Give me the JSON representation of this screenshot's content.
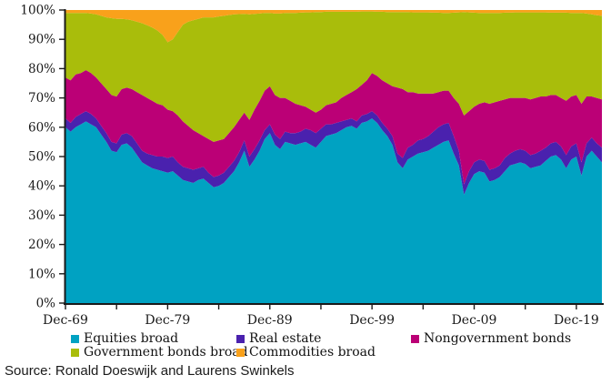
{
  "source_text": "Source: Ronald Doeswijk and Laurens Swinkels",
  "axis_color": "#1a1a1a",
  "chart_data": {
    "type": "area",
    "stacked": true,
    "title": "",
    "xlabel": "",
    "ylabel": "",
    "unit": "%",
    "ylim": [
      0,
      100
    ],
    "grid": false,
    "legend_position": "bottom",
    "y_tick_labels": [
      "0%",
      "10%",
      "20%",
      "30%",
      "40%",
      "50%",
      "60%",
      "70%",
      "80%",
      "90%",
      "100%"
    ],
    "x_tick_labels": [
      "Dec-69",
      "Dec-79",
      "Dec-89",
      "Dec-99",
      "Dec-09",
      "Dec-19"
    ],
    "x_tick_years": [
      1970,
      1980,
      1990,
      2000,
      2010,
      2020
    ],
    "minor_tick_years": [
      1970,
      1975,
      1980,
      1985,
      1990,
      1995,
      2000,
      2005,
      2010,
      2015,
      2020
    ],
    "x": [
      1970,
      1970.5,
      1971,
      1971.5,
      1972,
      1972.5,
      1973,
      1973.5,
      1974,
      1974.5,
      1975,
      1975.5,
      1976,
      1976.5,
      1977,
      1977.5,
      1978,
      1978.5,
      1979,
      1979.5,
      1980,
      1980.5,
      1981,
      1981.5,
      1982,
      1982.5,
      1983,
      1983.5,
      1984,
      1984.5,
      1985,
      1985.5,
      1986,
      1986.5,
      1987,
      1987.5,
      1988,
      1988.5,
      1989,
      1989.5,
      1990,
      1990.5,
      1991,
      1991.5,
      1992,
      1992.5,
      1993,
      1993.5,
      1994,
      1994.5,
      1995,
      1995.5,
      1996,
      1996.5,
      1997,
      1997.5,
      1998,
      1998.5,
      1999,
      1999.5,
      2000,
      2000.5,
      2001,
      2001.5,
      2002,
      2002.5,
      2003,
      2003.5,
      2004,
      2004.5,
      2005,
      2005.5,
      2006,
      2006.5,
      2007,
      2007.5,
      2008,
      2008.5,
      2009,
      2009.5,
      2010,
      2010.5,
      2011,
      2011.5,
      2012,
      2012.5,
      2013,
      2013.5,
      2014,
      2014.5,
      2015,
      2015.5,
      2016,
      2016.5,
      2017,
      2017.5,
      2018,
      2018.5,
      2019,
      2019.5,
      2020,
      2020.5,
      2021,
      2021.5,
      2022,
      2022.5
    ],
    "series": [
      {
        "name": "Equities broad",
        "color": "#00a2c2",
        "values": [
          60,
          58.5,
          60,
          61,
          62,
          61,
          60,
          57.5,
          55,
          52,
          51.5,
          54,
          54.5,
          53,
          50.5,
          48,
          47,
          46,
          45.5,
          45,
          44.5,
          45,
          43.5,
          42,
          41.5,
          41,
          42,
          42.5,
          41,
          39.5,
          40,
          41,
          43,
          45,
          48,
          52,
          46.5,
          49,
          52,
          56,
          58,
          54,
          52.5,
          55,
          54.5,
          54,
          54.5,
          55,
          54,
          53,
          55,
          57,
          57.5,
          58,
          59,
          60,
          60.5,
          59.5,
          61.5,
          62,
          63,
          61.5,
          59,
          57,
          54,
          48,
          46,
          49,
          50,
          51,
          51.5,
          52,
          53,
          54,
          55,
          55.5,
          51,
          47,
          37,
          41,
          44,
          45,
          44.5,
          41.5,
          42,
          43,
          45,
          47,
          47.5,
          48,
          47.5,
          46,
          46.5,
          47,
          48.5,
          50,
          50.5,
          49,
          46,
          49,
          50,
          43.5,
          50,
          52,
          50,
          48
        ]
      },
      {
        "name": "Real estate",
        "color": "#4a21ae",
        "values": [
          3,
          3,
          3.5,
          3.5,
          3.5,
          3.5,
          3,
          3,
          3,
          3,
          3,
          3.5,
          3.5,
          4,
          4,
          4,
          4,
          4.5,
          4.5,
          5,
          5,
          5,
          4.5,
          4.5,
          4.5,
          4.5,
          4,
          4,
          3.5,
          3.5,
          3.5,
          3.5,
          3.5,
          3.5,
          3.5,
          3.5,
          3.5,
          3.5,
          3.5,
          3,
          3,
          3.5,
          3.5,
          3.5,
          3.5,
          4,
          4,
          4.5,
          5,
          5,
          4.5,
          4,
          3.5,
          3.5,
          3,
          2.5,
          2.5,
          2.5,
          2.5,
          2.5,
          2.5,
          2.5,
          2.5,
          2.5,
          3,
          3,
          3.5,
          4,
          4,
          4.5,
          4.5,
          5,
          5.5,
          6,
          6,
          6,
          6,
          5,
          3.5,
          4,
          4,
          4,
          4,
          4,
          4,
          4,
          4.5,
          4,
          4.5,
          4.5,
          4.5,
          4.5,
          4.5,
          5,
          4.5,
          4.5,
          4.5,
          4.5,
          4.5,
          4.5,
          4.5,
          4.5,
          4.5,
          4.5,
          4.5,
          5
        ]
      },
      {
        "name": "Nongovernment bonds",
        "color": "#bb0076",
        "values": [
          14,
          14.5,
          14.5,
          14,
          14,
          14,
          14,
          14.5,
          15,
          16,
          16,
          15.5,
          15.5,
          16,
          17.5,
          19,
          19,
          18.5,
          18,
          17.5,
          16.5,
          15.5,
          16,
          15.5,
          14.5,
          13.5,
          12,
          10.5,
          11.5,
          12,
          12,
          11.5,
          11.5,
          11.5,
          11,
          9.5,
          12.5,
          13.5,
          13.5,
          13.5,
          13,
          13.5,
          14,
          11.5,
          11,
          10,
          9,
          7.5,
          7,
          7,
          6.5,
          6.5,
          7,
          7,
          8,
          8.5,
          9,
          11,
          10.5,
          11.5,
          13,
          13.5,
          14.5,
          15.5,
          17,
          22.5,
          23.5,
          19,
          18,
          16,
          15.5,
          14.5,
          13,
          12,
          11.5,
          11,
          13,
          16,
          23.5,
          20.5,
          19,
          19,
          20,
          22.5,
          22.5,
          22,
          20,
          19,
          18,
          17.5,
          18,
          19,
          19,
          18.5,
          17.5,
          16.5,
          16,
          16.5,
          18.5,
          17,
          16.5,
          20,
          16,
          14,
          15.5,
          16.5
        ]
      },
      {
        "name": "Government bonds broad",
        "color": "#a9bd0b",
        "values": [
          22,
          23,
          21,
          20.5,
          19.5,
          20.3,
          21.5,
          23,
          24.5,
          26.2,
          26.5,
          24,
          23.3,
          23.5,
          24,
          24.5,
          24.8,
          25,
          25,
          24,
          23,
          24.5,
          28.5,
          33,
          35.5,
          37.5,
          39,
          40.5,
          41.5,
          42.5,
          42.3,
          42,
          40.3,
          38.5,
          36.1,
          33.7,
          36,
          32.7,
          29.8,
          26.5,
          25,
          27.8,
          28.8,
          29,
          30,
          31,
          31.6,
          32.2,
          33.2,
          34.3,
          33.3,
          31.9,
          31.4,
          30.9,
          29.4,
          28.4,
          27.4,
          26.4,
          25,
          23.5,
          21,
          21.9,
          23.4,
          24.3,
          25.3,
          25.8,
          26.3,
          27.3,
          27.2,
          27.7,
          27.7,
          27.7,
          27.6,
          27.1,
          26.5,
          26.5,
          29.1,
          31.2,
          35.3,
          33.7,
          32.1,
          31,
          30.5,
          31,
          30.5,
          30,
          29.6,
          29.1,
          29.2,
          29.2,
          29.2,
          29.7,
          29.2,
          28.7,
          28.7,
          28.1,
          28.1,
          29.1,
          30.1,
          28.5,
          28,
          31,
          28.3,
          28,
          28.2,
          28.5
        ]
      },
      {
        "name": "Commodities broad",
        "color": "#f9a11b",
        "values": [
          1,
          1,
          1,
          1,
          1,
          1.2,
          1.5,
          2,
          2.5,
          2.8,
          3,
          3,
          3.2,
          3.5,
          4,
          4.5,
          5.2,
          6,
          7,
          8.5,
          11,
          10,
          7.5,
          5,
          4,
          3.5,
          3,
          2.5,
          2.5,
          2.5,
          2.2,
          2,
          1.7,
          1.5,
          1.4,
          1.3,
          1.5,
          1.3,
          1.2,
          1,
          1,
          1.2,
          1.2,
          1,
          1,
          1,
          0.9,
          0.8,
          0.8,
          0.7,
          0.7,
          0.6,
          0.6,
          0.6,
          0.6,
          0.6,
          0.6,
          0.6,
          0.5,
          0.5,
          0.5,
          0.6,
          0.6,
          0.7,
          0.7,
          0.7,
          0.7,
          0.7,
          0.8,
          0.8,
          0.8,
          0.8,
          0.9,
          0.9,
          1,
          1,
          0.9,
          0.8,
          0.7,
          0.8,
          0.9,
          1,
          1,
          1,
          1,
          1,
          0.9,
          0.9,
          0.8,
          0.8,
          0.8,
          0.8,
          0.8,
          0.8,
          0.8,
          0.9,
          0.9,
          0.9,
          0.9,
          1,
          1,
          1,
          1.2,
          1.5,
          1.8,
          2
        ]
      }
    ]
  }
}
